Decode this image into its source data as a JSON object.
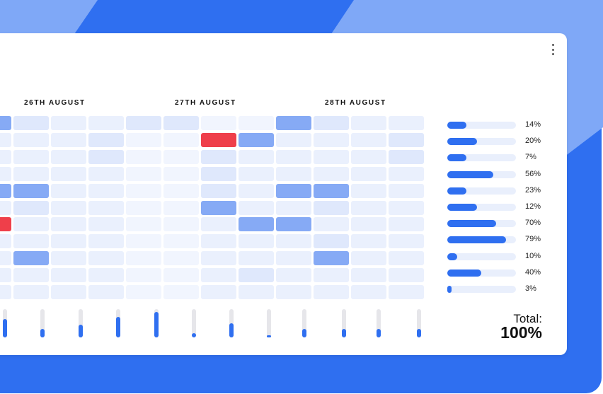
{
  "colors": {
    "accent": "#2f6ff0",
    "alert": "#ef3f4a",
    "mid": "#86aaf5",
    "light": "#dfe8fc",
    "lighter": "#eaf0fd",
    "lightest": "#f1f5fe"
  },
  "header": {
    "dates": [
      "26TH AUGUST",
      "27TH AUGUST",
      "28TH AUGUST"
    ]
  },
  "menu": {
    "icon": "more-vertical-icon"
  },
  "grid": {
    "legend": {
      "A": "alert",
      "M": "mid",
      "L": "light",
      "N": "lighter",
      "S": "lightest"
    },
    "rows": [
      "MLNNLLSSMLNN",
      "NNNLSSAMNNNL",
      "NNNLSSLNNNNL",
      "NNNNSSLNNNNN",
      "MMNNSSLNMMNN",
      "NLNNSSMNNLNN",
      "ANNNSSNMMNNN",
      "NNNNSSNNNLNN",
      "NMNNSSNNNMNN",
      "NNNNSSNLNNNN",
      "NNNNSSNNNNNN"
    ]
  },
  "bars": [
    {
      "label": "14%",
      "value": 0.28
    },
    {
      "label": "20%",
      "value": 0.43
    },
    {
      "label": "7%",
      "value": 0.28
    },
    {
      "label": "56%",
      "value": 0.67
    },
    {
      "label": "23%",
      "value": 0.28
    },
    {
      "label": "12%",
      "value": 0.43
    },
    {
      "label": "70%",
      "value": 0.71
    },
    {
      "label": "79%",
      "value": 0.86
    },
    {
      "label": "10%",
      "value": 0.14
    },
    {
      "label": "40%",
      "value": 0.49
    },
    {
      "label": "3%",
      "value": 0.06
    }
  ],
  "columns": [
    0.65,
    0.3,
    0.45,
    0.72,
    0.9,
    0.15,
    0.5,
    0.05,
    0.3,
    0.3,
    0.3,
    0.3
  ],
  "total": {
    "label": "Total:",
    "value": "100%"
  }
}
